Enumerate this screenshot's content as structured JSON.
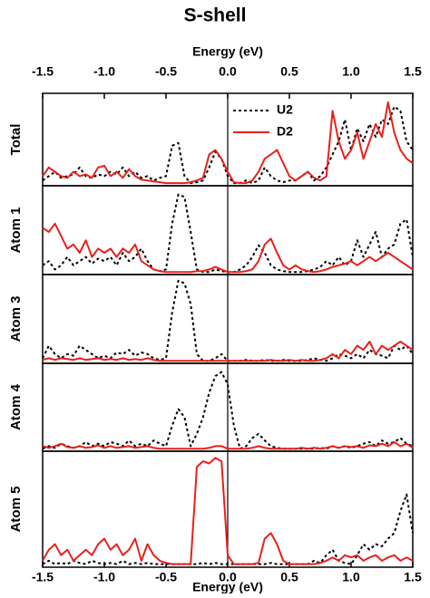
{
  "title": "S-shell",
  "chart_data": [
    {
      "type": "line",
      "ylabel": "Total",
      "xlabel": "Energy (eV)",
      "xlabel_position": "top",
      "legend": "upper center",
      "x": [
        -1.5,
        -1.45,
        -1.4,
        -1.35,
        -1.3,
        -1.25,
        -1.2,
        -1.15,
        -1.1,
        -1.05,
        -1.0,
        -0.95,
        -0.9,
        -0.85,
        -0.8,
        -0.75,
        -0.7,
        -0.65,
        -0.6,
        -0.55,
        -0.5,
        -0.45,
        -0.4,
        -0.35,
        -0.3,
        -0.25,
        -0.2,
        -0.15,
        -0.1,
        -0.05,
        0.0,
        0.05,
        0.1,
        0.15,
        0.2,
        0.25,
        0.3,
        0.35,
        0.4,
        0.45,
        0.5,
        0.55,
        0.6,
        0.65,
        0.7,
        0.75,
        0.8,
        0.85,
        0.9,
        0.95,
        1.0,
        1.05,
        1.1,
        1.15,
        1.2,
        1.25,
        1.3,
        1.35,
        1.4,
        1.45,
        1.5
      ],
      "xlim": [
        -1.5,
        1.5
      ],
      "xticks": [
        -1.5,
        {
          "value": -1.0,
          "label": "-1.0"
        },
        -0.5,
        {
          "value": 0.0,
          "label": "0.0"
        },
        0.5,
        {
          "value": 1.0,
          "label": "1.0"
        },
        1.5
      ],
      "ylim": [
        0,
        1
      ],
      "series": [
        {
          "name": "U2",
          "color": "#000000",
          "linestyle": "dashed",
          "values": [
            0.05,
            0.1,
            0.15,
            0.08,
            0.1,
            0.12,
            0.2,
            0.1,
            0.08,
            0.12,
            0.1,
            0.15,
            0.12,
            0.2,
            0.1,
            0.15,
            0.08,
            0.1,
            0.05,
            0.08,
            0.1,
            0.45,
            0.48,
            0.1,
            0.02,
            0.03,
            0.05,
            0.2,
            0.38,
            0.3,
            0.1,
            0.02,
            0.02,
            0.05,
            0.02,
            0.05,
            0.2,
            0.1,
            0.05,
            0.03,
            0.05,
            0.05,
            0.1,
            0.15,
            0.05,
            0.1,
            0.2,
            0.35,
            0.5,
            0.75,
            0.4,
            0.65,
            0.5,
            0.7,
            0.55,
            0.75,
            0.7,
            0.9,
            0.85,
            0.5,
            0.4
          ]
        },
        {
          "name": "D2",
          "color": "#e8201a",
          "linestyle": "solid",
          "values": [
            0.1,
            0.2,
            0.15,
            0.1,
            0.08,
            0.15,
            0.1,
            0.12,
            0.08,
            0.2,
            0.22,
            0.1,
            0.15,
            0.08,
            0.18,
            0.1,
            0.06,
            0.05,
            0.04,
            0.03,
            0.02,
            0.02,
            0.02,
            0.02,
            0.03,
            0.05,
            0.08,
            0.35,
            0.4,
            0.3,
            0.15,
            0.03,
            0.02,
            0.02,
            0.05,
            0.15,
            0.3,
            0.35,
            0.4,
            0.25,
            0.1,
            0.05,
            0.1,
            0.15,
            0.08,
            0.05,
            0.1,
            0.85,
            0.5,
            0.3,
            0.4,
            0.6,
            0.3,
            0.5,
            0.7,
            0.55,
            0.95,
            0.6,
            0.4,
            0.3,
            0.25
          ]
        }
      ]
    },
    {
      "type": "line",
      "ylabel": "Atom 1",
      "x": [
        -1.5,
        -1.45,
        -1.4,
        -1.35,
        -1.3,
        -1.25,
        -1.2,
        -1.15,
        -1.1,
        -1.05,
        -1.0,
        -0.95,
        -0.9,
        -0.85,
        -0.8,
        -0.75,
        -0.7,
        -0.65,
        -0.6,
        -0.55,
        -0.5,
        -0.45,
        -0.4,
        -0.35,
        -0.3,
        -0.25,
        -0.2,
        -0.15,
        -0.1,
        -0.05,
        0.0,
        0.05,
        0.1,
        0.15,
        0.2,
        0.25,
        0.3,
        0.35,
        0.4,
        0.45,
        0.5,
        0.55,
        0.6,
        0.65,
        0.7,
        0.75,
        0.8,
        0.85,
        0.9,
        0.95,
        1.0,
        1.05,
        1.1,
        1.15,
        1.2,
        1.25,
        1.3,
        1.35,
        1.4,
        1.45,
        1.5
      ],
      "xlim": [
        -1.5,
        1.5
      ],
      "ylim": [
        0,
        1
      ],
      "series": [
        {
          "name": "U2",
          "color": "#000000",
          "linestyle": "dashed",
          "values": [
            0.1,
            0.15,
            0.05,
            0.1,
            0.2,
            0.1,
            0.15,
            0.2,
            0.12,
            0.18,
            0.15,
            0.2,
            0.1,
            0.25,
            0.15,
            0.2,
            0.3,
            0.15,
            0.05,
            0.03,
            0.05,
            0.6,
            0.95,
            0.92,
            0.5,
            0.05,
            0.02,
            0.02,
            0.05,
            0.03,
            0.02,
            0.02,
            0.05,
            0.1,
            0.2,
            0.34,
            0.25,
            0.1,
            0.05,
            0.03,
            0.02,
            0.02,
            0.02,
            0.03,
            0.05,
            0.08,
            0.15,
            0.1,
            0.2,
            0.1,
            0.15,
            0.4,
            0.2,
            0.35,
            0.5,
            0.2,
            0.3,
            0.35,
            0.6,
            0.65,
            0.2
          ]
        },
        {
          "name": "D2",
          "color": "#e8201a",
          "linestyle": "solid",
          "values": [
            0.55,
            0.5,
            0.6,
            0.45,
            0.3,
            0.35,
            0.25,
            0.4,
            0.2,
            0.3,
            0.25,
            0.3,
            0.2,
            0.3,
            0.25,
            0.35,
            0.15,
            0.1,
            0.05,
            0.03,
            0.02,
            0.02,
            0.02,
            0.02,
            0.02,
            0.03,
            0.03,
            0.05,
            0.08,
            0.05,
            0.02,
            0.02,
            0.02,
            0.03,
            0.05,
            0.15,
            0.35,
            0.42,
            0.25,
            0.1,
            0.05,
            0.1,
            0.05,
            0.03,
            0.02,
            0.03,
            0.05,
            0.08,
            0.1,
            0.12,
            0.15,
            0.1,
            0.15,
            0.2,
            0.15,
            0.2,
            0.25,
            0.2,
            0.15,
            0.1,
            0.05
          ]
        }
      ]
    },
    {
      "type": "line",
      "ylabel": "Atom 3",
      "x": [
        -1.5,
        -1.45,
        -1.4,
        -1.35,
        -1.3,
        -1.25,
        -1.2,
        -1.15,
        -1.1,
        -1.05,
        -1.0,
        -0.95,
        -0.9,
        -0.85,
        -0.8,
        -0.75,
        -0.7,
        -0.65,
        -0.6,
        -0.55,
        -0.5,
        -0.45,
        -0.4,
        -0.35,
        -0.3,
        -0.25,
        -0.2,
        -0.15,
        -0.1,
        -0.05,
        0.0,
        0.05,
        0.1,
        0.15,
        0.2,
        0.25,
        0.3,
        0.35,
        0.4,
        0.45,
        0.5,
        0.55,
        0.6,
        0.65,
        0.7,
        0.75,
        0.8,
        0.85,
        0.9,
        0.95,
        1.0,
        1.05,
        1.1,
        1.15,
        1.2,
        1.25,
        1.3,
        1.35,
        1.4,
        1.45,
        1.5
      ],
      "xlim": [
        -1.5,
        1.5
      ],
      "ylim": [
        0,
        1
      ],
      "series": [
        {
          "name": "U2",
          "color": "#000000",
          "linestyle": "dashed",
          "values": [
            0.05,
            0.2,
            0.1,
            0.05,
            0.1,
            0.08,
            0.2,
            0.15,
            0.1,
            0.05,
            0.08,
            0.05,
            0.12,
            0.1,
            0.15,
            0.08,
            0.12,
            0.1,
            0.05,
            0.03,
            0.05,
            0.6,
            0.98,
            0.95,
            0.7,
            0.1,
            0.02,
            0.02,
            0.05,
            0.1,
            0.02,
            0.02,
            0.02,
            0.03,
            0.02,
            0.02,
            0.03,
            0.02,
            0.02,
            0.03,
            0.02,
            0.02,
            0.02,
            0.03,
            0.05,
            0.03,
            0.02,
            0.05,
            0.1,
            0.08,
            0.05,
            0.1,
            0.05,
            0.15,
            0.1,
            0.08,
            0.05,
            0.2,
            0.15,
            0.2,
            0.1
          ]
        },
        {
          "name": "D2",
          "color": "#e8201a",
          "linestyle": "solid",
          "values": [
            0.03,
            0.05,
            0.03,
            0.05,
            0.04,
            0.03,
            0.05,
            0.03,
            0.04,
            0.05,
            0.03,
            0.04,
            0.03,
            0.05,
            0.03,
            0.04,
            0.03,
            0.05,
            0.03,
            0.02,
            0.02,
            0.02,
            0.02,
            0.02,
            0.02,
            0.02,
            0.02,
            0.02,
            0.02,
            0.02,
            0.02,
            0.02,
            0.02,
            0.02,
            0.02,
            0.02,
            0.02,
            0.03,
            0.02,
            0.02,
            0.03,
            0.02,
            0.03,
            0.02,
            0.02,
            0.03,
            0.05,
            0.1,
            0.05,
            0.15,
            0.1,
            0.2,
            0.15,
            0.25,
            0.1,
            0.2,
            0.15,
            0.2,
            0.25,
            0.2,
            0.15
          ]
        }
      ]
    },
    {
      "type": "line",
      "ylabel": "Atom 4",
      "x": [
        -1.5,
        -1.45,
        -1.4,
        -1.35,
        -1.3,
        -1.25,
        -1.2,
        -1.15,
        -1.1,
        -1.05,
        -1.0,
        -0.95,
        -0.9,
        -0.85,
        -0.8,
        -0.75,
        -0.7,
        -0.65,
        -0.6,
        -0.55,
        -0.5,
        -0.45,
        -0.4,
        -0.35,
        -0.3,
        -0.25,
        -0.2,
        -0.15,
        -0.1,
        -0.05,
        0.0,
        0.05,
        0.1,
        0.15,
        0.2,
        0.25,
        0.3,
        0.35,
        0.4,
        0.45,
        0.5,
        0.55,
        0.6,
        0.65,
        0.7,
        0.75,
        0.8,
        0.85,
        0.9,
        0.95,
        1.0,
        1.05,
        1.1,
        1.15,
        1.2,
        1.25,
        1.3,
        1.35,
        1.4,
        1.45,
        1.5
      ],
      "xlim": [
        -1.5,
        1.5
      ],
      "ylim": [
        0,
        1
      ],
      "series": [
        {
          "name": "U2",
          "color": "#000000",
          "linestyle": "dashed",
          "values": [
            0.02,
            0.05,
            0.03,
            0.08,
            0.05,
            0.03,
            0.05,
            0.1,
            0.05,
            0.08,
            0.05,
            0.1,
            0.08,
            0.05,
            0.12,
            0.05,
            0.08,
            0.05,
            0.12,
            0.08,
            0.05,
            0.3,
            0.5,
            0.4,
            0.05,
            0.2,
            0.4,
            0.7,
            0.9,
            0.95,
            0.8,
            0.3,
            0.02,
            0.05,
            0.15,
            0.2,
            0.12,
            0.05,
            0.03,
            0.02,
            0.02,
            0.02,
            0.02,
            0.02,
            0.02,
            0.03,
            0.02,
            0.05,
            0.03,
            0.05,
            0.03,
            0.05,
            0.08,
            0.1,
            0.05,
            0.12,
            0.08,
            0.1,
            0.15,
            0.08,
            0.05
          ]
        },
        {
          "name": "D2",
          "color": "#e8201a",
          "linestyle": "solid",
          "values": [
            0.05,
            0.03,
            0.05,
            0.08,
            0.04,
            0.03,
            0.05,
            0.03,
            0.04,
            0.06,
            0.03,
            0.05,
            0.03,
            0.04,
            0.05,
            0.03,
            0.04,
            0.05,
            0.03,
            0.02,
            0.02,
            0.02,
            0.02,
            0.02,
            0.02,
            0.02,
            0.02,
            0.03,
            0.05,
            0.05,
            0.02,
            0.02,
            0.02,
            0.02,
            0.03,
            0.05,
            0.03,
            0.02,
            0.02,
            0.02,
            0.02,
            0.02,
            0.03,
            0.02,
            0.03,
            0.02,
            0.03,
            0.05,
            0.03,
            0.05,
            0.04,
            0.05,
            0.03,
            0.06,
            0.05,
            0.08,
            0.05,
            0.1,
            0.05,
            0.08,
            0.03
          ]
        }
      ]
    },
    {
      "type": "line",
      "ylabel": "Atom 5",
      "xlabel": "Energy (eV)",
      "xlabel_position": "bottom",
      "x": [
        -1.5,
        -1.45,
        -1.4,
        -1.35,
        -1.3,
        -1.25,
        -1.2,
        -1.15,
        -1.1,
        -1.05,
        -1.0,
        -0.95,
        -0.9,
        -0.85,
        -0.8,
        -0.75,
        -0.7,
        -0.65,
        -0.6,
        -0.55,
        -0.5,
        -0.45,
        -0.4,
        -0.35,
        -0.3,
        -0.25,
        -0.2,
        -0.15,
        -0.1,
        -0.05,
        0.0,
        0.05,
        0.1,
        0.15,
        0.2,
        0.25,
        0.3,
        0.35,
        0.4,
        0.45,
        0.5,
        0.55,
        0.6,
        0.65,
        0.7,
        0.75,
        0.8,
        0.85,
        0.9,
        0.95,
        1.0,
        1.05,
        1.1,
        1.15,
        1.2,
        1.25,
        1.3,
        1.35,
        1.4,
        1.45,
        1.5
      ],
      "xlim": [
        -1.5,
        1.5
      ],
      "xticks": [
        -1.5,
        {
          "value": -1.0,
          "label": "-1.0"
        },
        -0.5,
        {
          "value": 0.0,
          "label": "0.0"
        },
        0.5,
        {
          "value": 1.0,
          "label": "1.0"
        },
        1.5
      ],
      "ylim": [
        0,
        1
      ],
      "series": [
        {
          "name": "U2",
          "color": "#000000",
          "linestyle": "dashed",
          "values": [
            0.02,
            0.05,
            0.02,
            0.03,
            0.02,
            0.05,
            0.03,
            0.02,
            0.05,
            0.03,
            0.02,
            0.03,
            0.02,
            0.05,
            0.02,
            0.03,
            0.02,
            0.03,
            0.02,
            0.02,
            0.02,
            0.02,
            0.02,
            0.02,
            0.02,
            0.02,
            0.03,
            0.02,
            0.03,
            0.02,
            0.02,
            0.02,
            0.02,
            0.02,
            0.02,
            0.02,
            0.02,
            0.03,
            0.02,
            0.02,
            0.02,
            0.02,
            0.02,
            0.02,
            0.05,
            0.03,
            0.1,
            0.15,
            0.05,
            0.03,
            0.02,
            0.1,
            0.2,
            0.15,
            0.2,
            0.18,
            0.25,
            0.3,
            0.5,
            0.65,
            0.3
          ]
        },
        {
          "name": "D2",
          "color": "#e8201a",
          "linestyle": "solid",
          "values": [
            0.05,
            0.15,
            0.2,
            0.1,
            0.15,
            0.05,
            0.1,
            0.15,
            0.1,
            0.2,
            0.25,
            0.15,
            0.2,
            0.1,
            0.15,
            0.25,
            0.05,
            0.2,
            0.1,
            0.05,
            0.03,
            0.02,
            0.02,
            0.02,
            0.02,
            0.9,
            0.95,
            0.93,
            0.98,
            0.95,
            0.1,
            0.02,
            0.02,
            0.02,
            0.02,
            0.03,
            0.25,
            0.3,
            0.2,
            0.05,
            0.02,
            0.02,
            0.02,
            0.02,
            0.02,
            0.03,
            0.05,
            0.08,
            0.05,
            0.1,
            0.08,
            0.1,
            0.05,
            0.08,
            0.1,
            0.05,
            0.08,
            0.1,
            0.05,
            0.08,
            0.05
          ]
        }
      ]
    }
  ]
}
